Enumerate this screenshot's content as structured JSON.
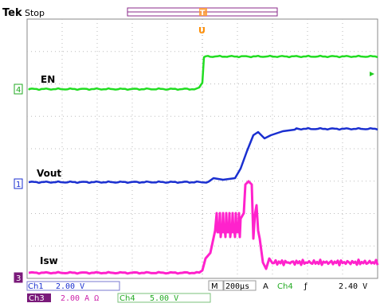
{
  "header": {
    "brand": "Tek",
    "status": "Stop",
    "trigger_marker": "T",
    "trigger_mark": "U"
  },
  "channels": {
    "ch4_marker": "4",
    "ch1_marker": "1",
    "ch3_marker": "3"
  },
  "traces": {
    "en_label": "EN",
    "vout_label": "Vout",
    "isw_label": "Isw",
    "en_color": "#22dd22",
    "vout_color": "#1a2fd0",
    "isw_color": "#ff22cc"
  },
  "readout": {
    "ch1_name": "Ch1",
    "ch1_scale": "2.00 V",
    "ch3_name": "Ch3",
    "ch3_scale": "2.00 A Ω",
    "ch4_name": "Ch4",
    "ch4_scale": "5.00 V",
    "time_prefix": "M",
    "time_scale": "200µs",
    "trig_prefix": "A",
    "trig_source": "Ch4",
    "trig_slope": "ƒ",
    "trig_level": "2.40 V"
  }
}
